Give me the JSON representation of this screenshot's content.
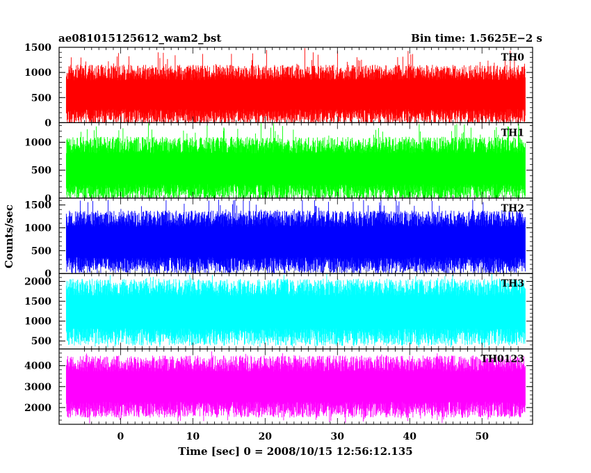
{
  "header": {
    "left_title": "ae081015125612_wam2_bst",
    "right_title": "Bin time: 1.5625E−2 s"
  },
  "chart_data": {
    "type": "line",
    "title": "ae081015125612_wam2_bst",
    "subtitle": "Bin time: 1.5625E−2 s",
    "xlabel": "Time [sec] 0 = 2008/10/15 12:56:12.135",
    "ylabel": "Counts/sec",
    "xlim": [
      -8.5,
      57
    ],
    "data_range": [
      -7.5,
      56
    ],
    "x_ticks": [
      0,
      10,
      20,
      30,
      40,
      50
    ],
    "x_tick_labels": [
      "0",
      "10",
      "20",
      "30",
      "40",
      "50"
    ],
    "grid": false,
    "panels": [
      {
        "name": "TH0",
        "color": "#ff0000",
        "ylim": [
          0,
          1500
        ],
        "y_ticks": [
          0,
          500,
          1000,
          1500
        ],
        "y_tick_labels": [
          "0",
          "500",
          "1000",
          "1500"
        ],
        "envelope": {
          "low_typical": 120,
          "high_typical": 1000,
          "min": 0,
          "max": 1500
        }
      },
      {
        "name": "TH1",
        "color": "#00ff00",
        "ylim": [
          0,
          1350
        ],
        "y_ticks": [
          0,
          500,
          1000
        ],
        "y_tick_labels": [
          "0",
          "500",
          "1000"
        ],
        "envelope": {
          "low_typical": 100,
          "high_typical": 950,
          "min": 0,
          "max": 1350
        }
      },
      {
        "name": "TH2",
        "color": "#0000ff",
        "ylim": [
          0,
          1650
        ],
        "y_ticks": [
          0,
          500,
          1000,
          1500
        ],
        "y_tick_labels": [
          "0",
          "500",
          "1000",
          "1500"
        ],
        "envelope": {
          "low_typical": 180,
          "high_typical": 1200,
          "min": 0,
          "max": 1650
        }
      },
      {
        "name": "TH3",
        "color": "#00ffff",
        "ylim": [
          300,
          2200
        ],
        "y_ticks": [
          500,
          1000,
          1500,
          2000
        ],
        "y_tick_labels": [
          "500",
          "1000",
          "1500",
          "2000"
        ],
        "envelope": {
          "low_typical": 600,
          "high_typical": 1850,
          "min": 330,
          "max": 2200
        }
      },
      {
        "name": "TH0123",
        "color": "#ff00ff",
        "ylim": [
          1200,
          4800
        ],
        "y_ticks": [
          2000,
          3000,
          4000
        ],
        "y_tick_labels": [
          "2000",
          "3000",
          "4000"
        ],
        "envelope": {
          "low_typical": 1900,
          "high_typical": 4100,
          "min": 1250,
          "max": 4700
        }
      }
    ]
  }
}
